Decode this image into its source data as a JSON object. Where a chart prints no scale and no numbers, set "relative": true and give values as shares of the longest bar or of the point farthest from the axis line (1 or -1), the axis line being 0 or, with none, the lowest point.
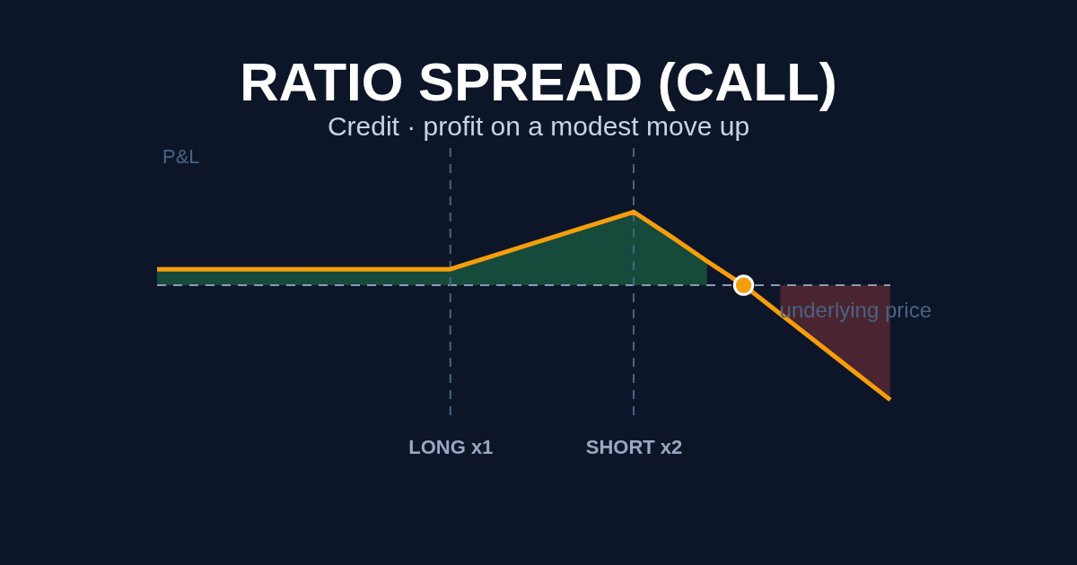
{
  "chart_data": {
    "type": "line",
    "title": "RATIO SPREAD (CALL)",
    "subtitle": "Credit  ·  profit on a modest move up",
    "xlabel": "underlying price",
    "ylabel": "P&L",
    "relative": true,
    "categories": [
      null,
      null,
      null,
      null,
      null,
      null,
      null,
      null,
      "LONG x1",
      null,
      null,
      null,
      null,
      "SHORT x2",
      null,
      null,
      null,
      null,
      null,
      null,
      null
    ],
    "series": [
      {
        "type": "area",
        "color": "#164a3a",
        "values": [
          0.14,
          0.14,
          0.14,
          0.14,
          0.14,
          0.14,
          0.14,
          0.14,
          0.14,
          0.24,
          0.34,
          0.44,
          0.54,
          0.64,
          0.43,
          0.21,
          null,
          null,
          null,
          null,
          null
        ]
      },
      {
        "type": "area",
        "color": "#4a2430",
        "values": [
          null,
          null,
          null,
          null,
          null,
          null,
          null,
          null,
          null,
          null,
          null,
          null,
          null,
          null,
          null,
          null,
          null,
          -0.25,
          -0.5,
          -0.75,
          -1
        ]
      },
      {
        "color": "#f59e0b",
        "line_style": "solid",
        "values": [
          0.14,
          0.14,
          0.14,
          0.14,
          0.14,
          0.14,
          0.14,
          0.14,
          0.14,
          0.24,
          0.34,
          0.44,
          0.54,
          0.64,
          0.43,
          0.21,
          0,
          -0.25,
          -0.5,
          -0.75,
          -1
        ]
      },
      {
        "type": "scatter",
        "color": "#f59e0b",
        "marker": "circle",
        "values": [
          null,
          null,
          null,
          null,
          null,
          null,
          null,
          null,
          null,
          null,
          null,
          null,
          null,
          null,
          null,
          null,
          0,
          null,
          null,
          null,
          null
        ]
      }
    ],
    "ref_lines": [
      {
        "axis": "y",
        "value": 0,
        "color": "#8a9bb5",
        "line_style": "dashed"
      },
      {
        "axis": "x",
        "value": "LONG x1",
        "color": "#4a6385",
        "line_style": "dashed"
      },
      {
        "axis": "x",
        "value": "SHORT x2",
        "color": "#4a6385",
        "line_style": "dashed"
      }
    ]
  }
}
